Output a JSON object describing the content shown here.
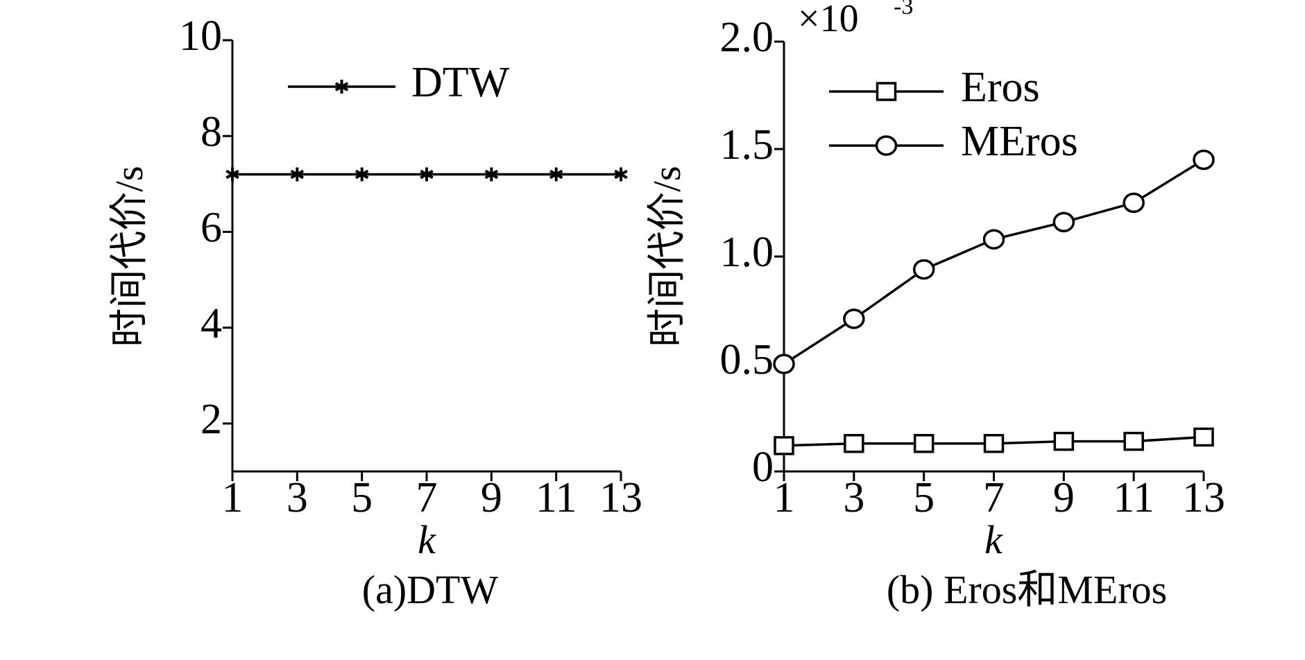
{
  "chart_data": [
    {
      "type": "line",
      "caption": "(a)DTW",
      "xlabel": "k",
      "ylabel": "时间代价/s",
      "xlim": [
        1,
        13
      ],
      "ylim": [
        1,
        10
      ],
      "xticks": [
        "1",
        "3",
        "5",
        "7",
        "9",
        "11",
        "13"
      ],
      "yticks": [
        {
          "value": 2,
          "label": "2"
        },
        {
          "value": 4,
          "label": "4"
        },
        {
          "value": 6,
          "label": "6"
        },
        {
          "value": 8,
          "label": "8"
        },
        {
          "value": 10,
          "label": "10"
        }
      ],
      "legend_position": "top",
      "grid": false,
      "series": [
        {
          "name": "DTW",
          "marker": "asterisk",
          "color": "#000000",
          "x": [
            1,
            3,
            5,
            7,
            9,
            11,
            13
          ],
          "y": [
            7.2,
            7.2,
            7.2,
            7.2,
            7.2,
            7.2,
            7.2
          ]
        }
      ]
    },
    {
      "type": "line",
      "caption": "(b) Eros和MEros",
      "xlabel": "k",
      "ylabel": "时间代价/s",
      "exponent_label": "×10",
      "exponent": "-3",
      "xlim": [
        1,
        13
      ],
      "ylim": [
        0,
        2.0
      ],
      "xticks": [
        "1",
        "3",
        "5",
        "7",
        "9",
        "11",
        "13"
      ],
      "yticks": [
        {
          "value": 0,
          "label": "0"
        },
        {
          "value": 0.5,
          "label": "0.5"
        },
        {
          "value": 1.0,
          "label": "1.0"
        },
        {
          "value": 1.5,
          "label": "1.5"
        },
        {
          "value": 2.0,
          "label": "2.0"
        }
      ],
      "legend_position": "top-left",
      "grid": false,
      "series": [
        {
          "name": "Eros",
          "marker": "square",
          "color": "#000000",
          "x": [
            1,
            3,
            5,
            7,
            9,
            11,
            13
          ],
          "y": [
            0.12,
            0.13,
            0.13,
            0.13,
            0.14,
            0.14,
            0.16
          ]
        },
        {
          "name": "MEros",
          "marker": "circle",
          "color": "#000000",
          "x": [
            1,
            3,
            5,
            7,
            9,
            11,
            13
          ],
          "y": [
            0.5,
            0.71,
            0.94,
            1.08,
            1.16,
            1.25,
            1.45
          ]
        }
      ]
    }
  ]
}
